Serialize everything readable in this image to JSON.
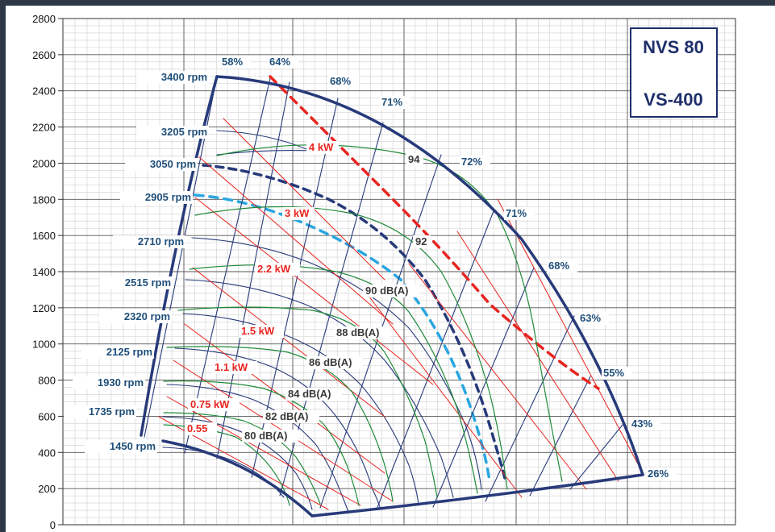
{
  "chart_data": {
    "type": "line",
    "title": "",
    "model_labels": [
      "NVS 80",
      "VS-400"
    ],
    "xlabel": "",
    "ylabel": "",
    "ylim": [
      0,
      2800
    ],
    "y_ticks": [
      "0",
      "200",
      "400",
      "600",
      "800",
      "1000",
      "1200",
      "1400",
      "1600",
      "1800",
      "2000",
      "2200",
      "2400",
      "2600",
      "2800"
    ],
    "grid": true,
    "colors": {
      "outline": "#273a7a",
      "rpm_curve": "#273a7a",
      "efficiency_line": "#273a7a",
      "power_line": "#e8251f",
      "noise_curve": "#1f8a3a",
      "rpm_2905": "#2aa6e0",
      "label_blue": "#1f4e79",
      "label_red": "#e8251f",
      "label_dark": "#3a3a3a"
    },
    "rpm_curves": [
      {
        "label": "3400 rpm",
        "y_start": 2500
      },
      {
        "label": "3205 rpm",
        "y_start": 2220
      },
      {
        "label": "3050 rpm",
        "y_start": 2010
      },
      {
        "label": "2905 rpm",
        "y_start": 1830
      },
      {
        "label": "2710 rpm",
        "y_start": 1590
      },
      {
        "label": "2515 rpm",
        "y_start": 1370
      },
      {
        "label": "2320 rpm",
        "y_start": 1180
      },
      {
        "label": "2125 rpm",
        "y_start": 1010
      },
      {
        "label": "1930 rpm",
        "y_start": 830
      },
      {
        "label": "1735 rpm",
        "y_start": 670
      },
      {
        "label": "1450 rpm",
        "y_start": 450
      }
    ],
    "efficiency_labels": [
      "58%",
      "64%",
      "68%",
      "71%",
      "72%",
      "71%",
      "68%",
      "63%",
      "55%",
      "43%",
      "26%"
    ],
    "power_labels": [
      "4 kW",
      "3 kW",
      "2.2 kW",
      "1.5 kW",
      "1.1 kW",
      "0.75 kW",
      "0.55"
    ],
    "noise_labels": [
      "94",
      "92",
      "90 dB(A)",
      "88 dB(A)",
      "86 dB(A)",
      "84 dB(A)",
      "82 dB(A)",
      "80 dB(A)"
    ]
  }
}
